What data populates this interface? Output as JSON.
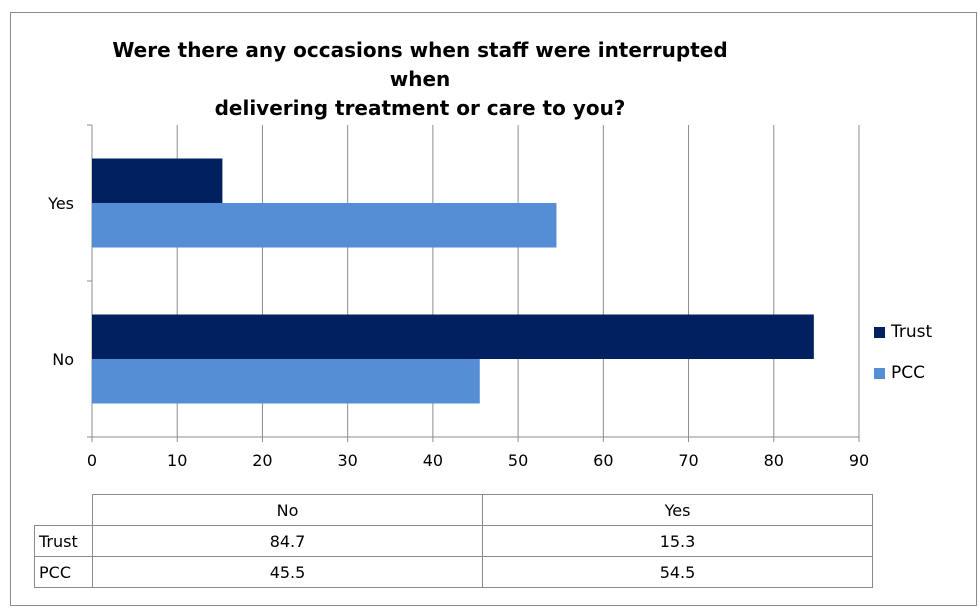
{
  "chart_data": {
    "type": "bar",
    "orientation": "horizontal",
    "title": "Were there any occasions when staff were interrupted when delivering treatment or care to you?",
    "title_lines": [
      "Were there any occasions when staff were interrupted when",
      "delivering treatment or care to you?"
    ],
    "categories": [
      "Yes",
      "No"
    ],
    "series": [
      {
        "name": "Trust",
        "color": "#002060",
        "values": [
          15.3,
          84.7
        ]
      },
      {
        "name": "PCC",
        "color": "#558ED5",
        "values": [
          54.5,
          45.5
        ]
      }
    ],
    "xlim": [
      0,
      90
    ],
    "x_ticks": [
      0,
      10,
      20,
      30,
      40,
      50,
      60,
      70,
      80,
      90
    ],
    "grid": true,
    "legend_position": "right",
    "data_table": {
      "columns": [
        "No",
        "Yes"
      ],
      "rows": [
        {
          "label": "Trust",
          "values": [
            "84.7",
            "15.3"
          ]
        },
        {
          "label": "PCC",
          "values": [
            "45.5",
            "54.5"
          ]
        }
      ]
    }
  }
}
